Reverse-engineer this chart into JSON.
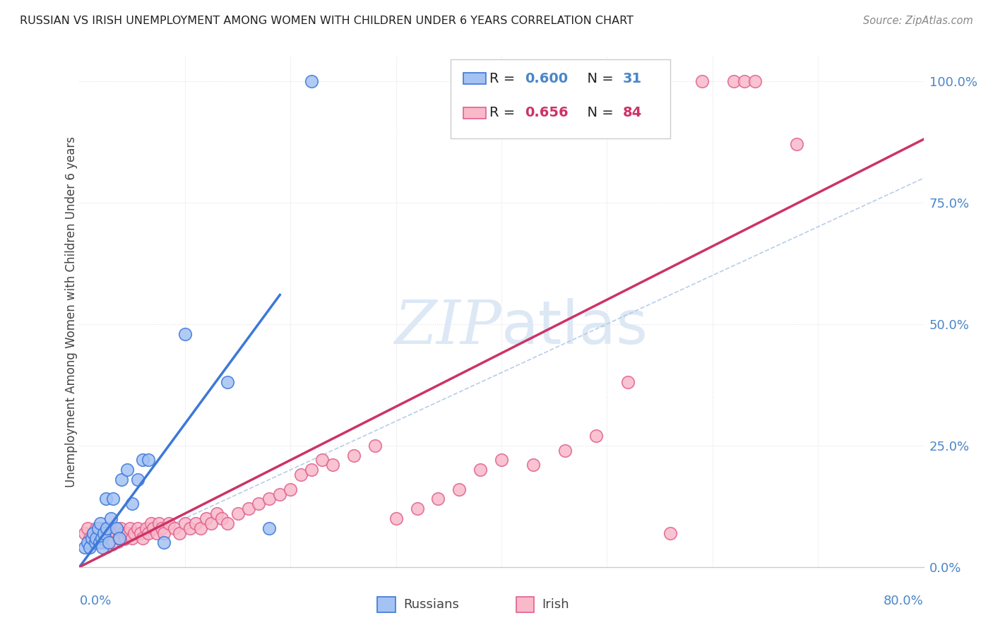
{
  "title": "RUSSIAN VS IRISH UNEMPLOYMENT AMONG WOMEN WITH CHILDREN UNDER 6 YEARS CORRELATION CHART",
  "source": "Source: ZipAtlas.com",
  "ylabel": "Unemployment Among Women with Children Under 6 years",
  "xmin": 0.0,
  "xmax": 0.8,
  "ymin": 0.0,
  "ymax": 1.05,
  "yticks": [
    0.0,
    0.25,
    0.5,
    0.75,
    1.0
  ],
  "ytick_labels": [
    "0.0%",
    "25.0%",
    "50.0%",
    "75.0%",
    "100.0%"
  ],
  "legend_russian_R": "0.600",
  "legend_russian_N": "31",
  "legend_irish_R": "0.656",
  "legend_irish_N": "84",
  "color_russian_face": "#a4c2f4",
  "color_russian_edge": "#3c78d8",
  "color_irish_face": "#f9b9c9",
  "color_irish_edge": "#e06090",
  "color_russian_line": "#3c78d8",
  "color_irish_line": "#cc3366",
  "color_diagonal": "#b0c8e8",
  "color_grid": "#e0e0e0",
  "background_color": "#ffffff",
  "title_color": "#222222",
  "axis_label_color": "#4a86c8",
  "watermark_color": "#dde8f5",
  "rus_line_x0": 0.0,
  "rus_line_y0": 0.0,
  "rus_line_x1": 0.19,
  "rus_line_y1": 0.56,
  "irish_line_x0": 0.0,
  "irish_line_y0": 0.0,
  "irish_line_x1": 0.8,
  "irish_line_y1": 0.88,
  "russian_x": [
    0.005,
    0.008,
    0.01,
    0.012,
    0.013,
    0.015,
    0.016,
    0.018,
    0.019,
    0.02,
    0.021,
    0.022,
    0.023,
    0.025,
    0.026,
    0.028,
    0.03,
    0.032,
    0.035,
    0.038,
    0.04,
    0.045,
    0.05,
    0.055,
    0.06,
    0.065,
    0.08,
    0.1,
    0.14,
    0.18,
    0.22
  ],
  "russian_y": [
    0.04,
    0.05,
    0.04,
    0.06,
    0.07,
    0.05,
    0.06,
    0.08,
    0.05,
    0.09,
    0.06,
    0.04,
    0.07,
    0.14,
    0.08,
    0.05,
    0.1,
    0.14,
    0.08,
    0.06,
    0.18,
    0.2,
    0.13,
    0.18,
    0.22,
    0.22,
    0.05,
    0.48,
    0.38,
    0.08,
    1.0
  ],
  "irish_x": [
    0.005,
    0.008,
    0.01,
    0.012,
    0.013,
    0.014,
    0.015,
    0.016,
    0.017,
    0.018,
    0.019,
    0.02,
    0.021,
    0.022,
    0.023,
    0.024,
    0.025,
    0.026,
    0.027,
    0.028,
    0.029,
    0.03,
    0.031,
    0.033,
    0.035,
    0.037,
    0.039,
    0.041,
    0.043,
    0.046,
    0.048,
    0.05,
    0.052,
    0.055,
    0.058,
    0.06,
    0.063,
    0.065,
    0.068,
    0.07,
    0.073,
    0.075,
    0.078,
    0.08,
    0.085,
    0.09,
    0.095,
    0.1,
    0.105,
    0.11,
    0.115,
    0.12,
    0.125,
    0.13,
    0.135,
    0.14,
    0.15,
    0.16,
    0.17,
    0.18,
    0.19,
    0.2,
    0.21,
    0.22,
    0.23,
    0.24,
    0.26,
    0.28,
    0.3,
    0.32,
    0.34,
    0.36,
    0.38,
    0.4,
    0.43,
    0.46,
    0.49,
    0.52,
    0.56,
    0.59,
    0.62,
    0.63,
    0.64,
    0.68
  ],
  "irish_y": [
    0.07,
    0.08,
    0.06,
    0.05,
    0.07,
    0.06,
    0.05,
    0.08,
    0.06,
    0.07,
    0.05,
    0.08,
    0.06,
    0.07,
    0.05,
    0.08,
    0.06,
    0.07,
    0.05,
    0.08,
    0.06,
    0.07,
    0.05,
    0.08,
    0.07,
    0.06,
    0.08,
    0.07,
    0.06,
    0.07,
    0.08,
    0.06,
    0.07,
    0.08,
    0.07,
    0.06,
    0.08,
    0.07,
    0.09,
    0.08,
    0.07,
    0.09,
    0.08,
    0.07,
    0.09,
    0.08,
    0.07,
    0.09,
    0.08,
    0.09,
    0.08,
    0.1,
    0.09,
    0.11,
    0.1,
    0.09,
    0.11,
    0.12,
    0.13,
    0.14,
    0.15,
    0.16,
    0.19,
    0.2,
    0.22,
    0.21,
    0.23,
    0.25,
    0.1,
    0.12,
    0.14,
    0.16,
    0.2,
    0.22,
    0.21,
    0.24,
    0.27,
    0.38,
    0.07,
    1.0,
    1.0,
    1.0,
    1.0,
    0.87
  ]
}
